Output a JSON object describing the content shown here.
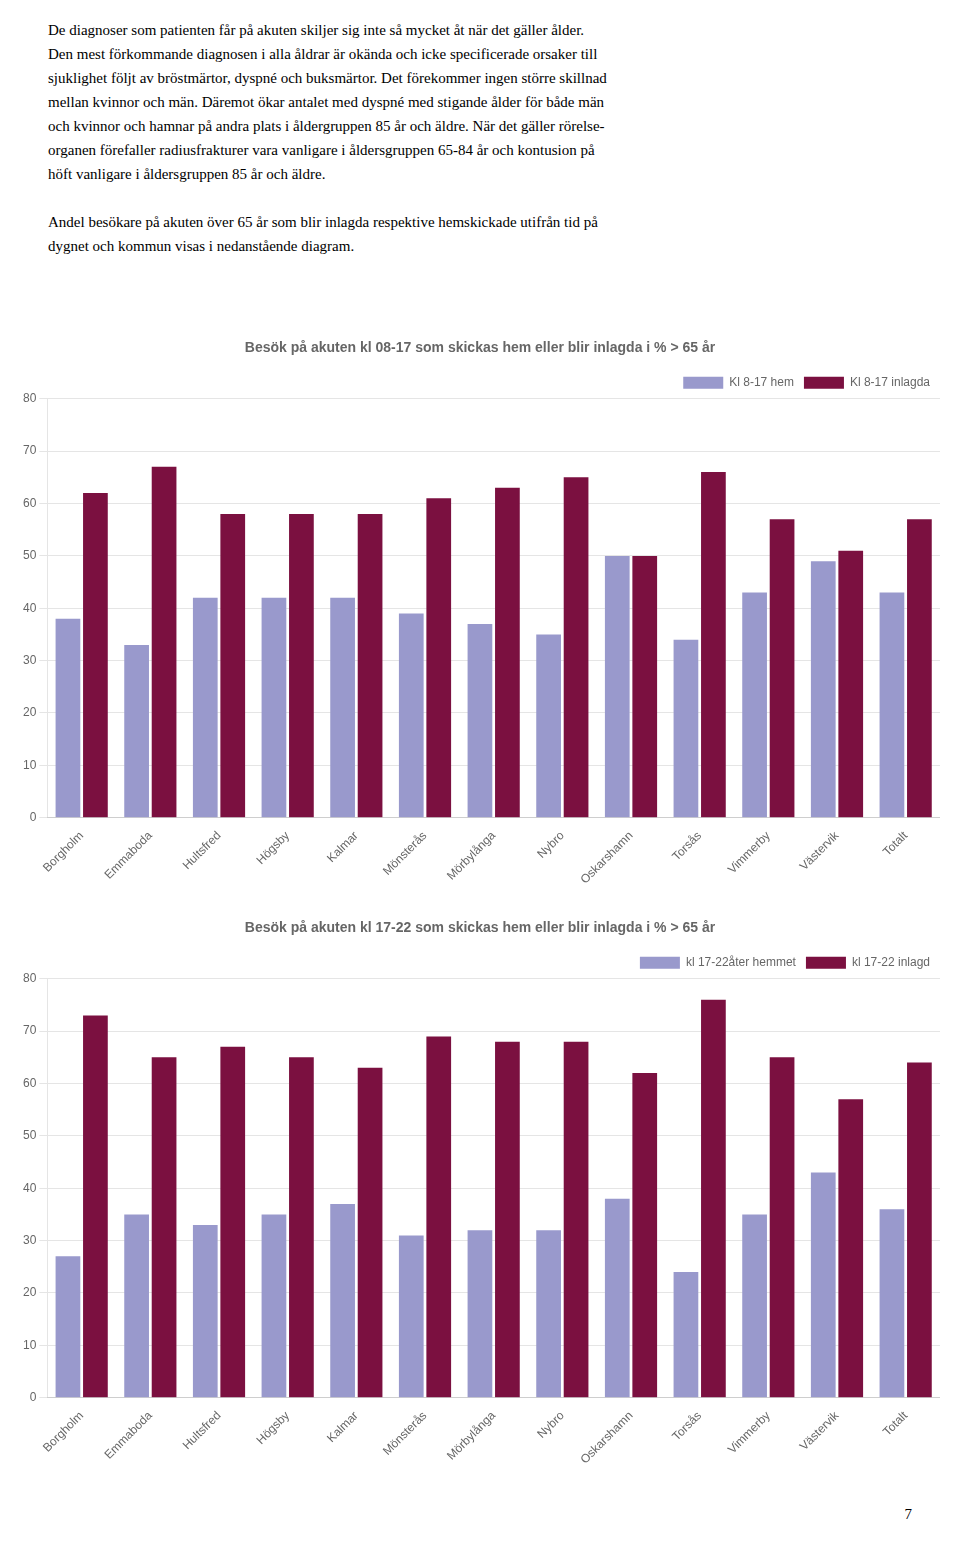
{
  "text": [
    [
      "De diagnoser som patienten får på akuten skiljer sig inte så mycket åt när det gäller ålder.",
      "Den mest förkommande diagnosen i alla åldrar är okända och icke specificerade orsaker till",
      "sjuklighet följt av bröstmärtor, dyspné och buksmärtor. Det förekommer ingen större skillnad",
      "mellan kvinnor och män. Däremot ökar antalet med dyspné med stigande ålder för både män",
      "och kvinnor och hamnar på andra plats i åldergruppen 85 år och äldre. När det gäller rörelse-",
      "organen förefaller radiusfrakturer vara vanligare i åldersgruppen 65-84 år och kontusion på",
      "höft vanligare i åldersgruppen 85 år och äldre."
    ],
    [
      "Andel besökare på akuten över 65 år som blir inlagda respektive hemskickade utifrån tid på",
      "dygnet och kommun visas i nedanstående diagram."
    ]
  ],
  "page_number": "7",
  "chart_data": [
    {
      "type": "bar",
      "title": "Besök på akuten kl 08-17 som skickas hem eller blir inlagda i % > 65 år",
      "categories": [
        "Borgholm",
        "Emmaboda",
        "Hultsfred",
        "Högsby",
        "Kalmar",
        "Mönsterås",
        "Mörbylånga",
        "Nybro",
        "Oskarshamn",
        "Torsås",
        "Vimmerby",
        "Västervik",
        "Totalt"
      ],
      "series": [
        {
          "name": "Kl 8-17 hem",
          "color": "#9999CC",
          "values": [
            38,
            33,
            42,
            42,
            42,
            39,
            37,
            35,
            50,
            34,
            43,
            49,
            43
          ]
        },
        {
          "name": "Kl 8-17 inlagda",
          "color": "#7B1040",
          "values": [
            62,
            67,
            58,
            58,
            58,
            61,
            63,
            65,
            50,
            66,
            57,
            51,
            57
          ]
        }
      ],
      "ylim": [
        0,
        80
      ],
      "yticks": [
        0,
        10,
        20,
        30,
        40,
        50,
        60,
        70,
        80
      ],
      "grid": true,
      "legend": "upper right"
    },
    {
      "type": "bar",
      "title": "Besök på akuten kl 17-22 som skickas hem eller blir inlagda i % > 65 år",
      "categories": [
        "Borgholm",
        "Emmaboda",
        "Hultsfred",
        "Högsby",
        "Kalmar",
        "Mönsterås",
        "Mörbylånga",
        "Nybro",
        "Oskarshamn",
        "Torsås",
        "Vimmerby",
        "Västervik",
        "Totalt"
      ],
      "series": [
        {
          "name": "kl 17-22åter hemmet",
          "color": "#9999CC",
          "values": [
            27,
            35,
            33,
            35,
            37,
            31,
            32,
            32,
            38,
            24,
            35,
            43,
            36
          ]
        },
        {
          "name": "kl 17-22 inlagd",
          "color": "#7B1040",
          "values": [
            73,
            65,
            67,
            65,
            63,
            69,
            68,
            68,
            62,
            76,
            65,
            57,
            64
          ]
        }
      ],
      "ylim": [
        0,
        80
      ],
      "yticks": [
        0,
        10,
        20,
        30,
        40,
        50,
        60,
        70,
        80
      ],
      "grid": true,
      "legend": "upper right"
    }
  ]
}
